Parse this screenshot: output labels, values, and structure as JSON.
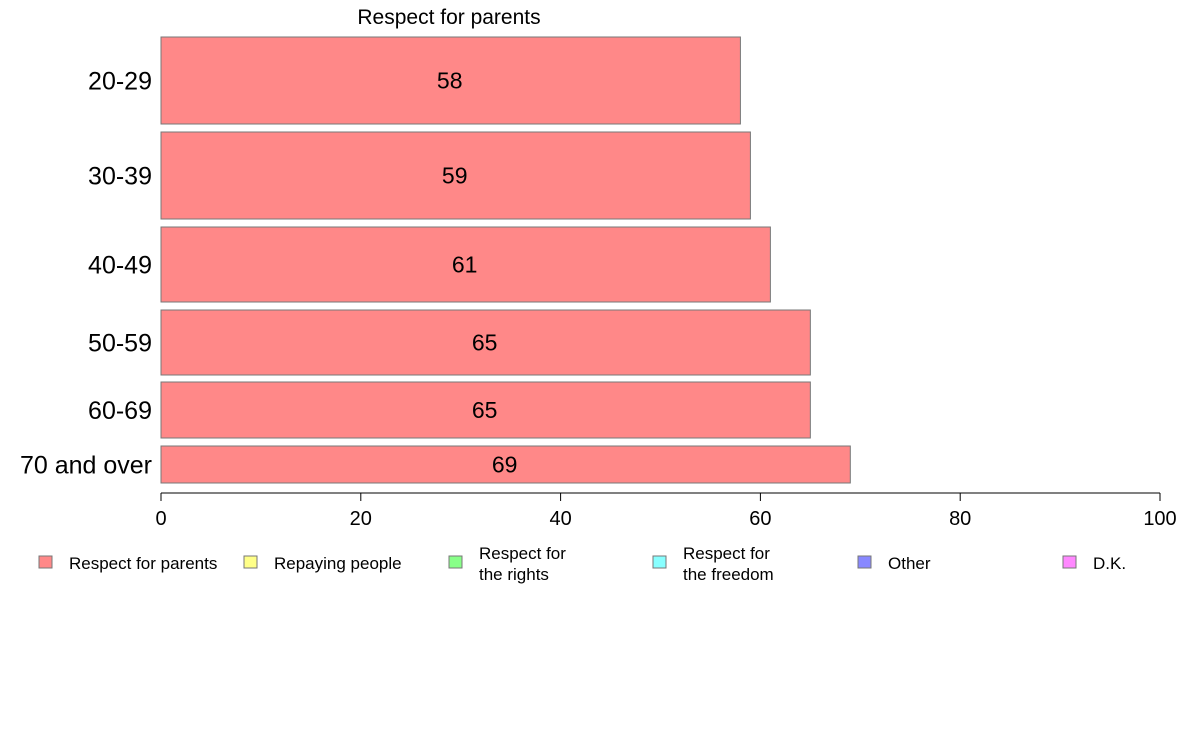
{
  "chart_data": {
    "type": "bar",
    "orientation": "horizontal",
    "title": "Respect for parents",
    "categories": [
      "20-29",
      "30-39",
      "40-49",
      "50-59",
      "60-69",
      "70 and over"
    ],
    "series": [
      {
        "name": "Respect for parents",
        "values": [
          58,
          59,
          61,
          65,
          65,
          69
        ],
        "color": "#ff8888"
      }
    ],
    "data_labels": [
      "58",
      "59",
      "61",
      "65",
      "65",
      "69"
    ],
    "xlim": [
      0,
      100
    ],
    "x_ticks": [
      0,
      20,
      40,
      60,
      80,
      100
    ],
    "x_tick_labels": [
      "0",
      "20",
      "40",
      "60",
      "80",
      "100"
    ],
    "grid": false,
    "legend": {
      "placement": "bottom",
      "entries": [
        {
          "lines": [
            "Respect for parents"
          ],
          "color": "#ff8888"
        },
        {
          "lines": [
            "Repaying people"
          ],
          "color": "#ffff88"
        },
        {
          "lines": [
            "Respect for",
            "the rights"
          ],
          "color": "#88ff88"
        },
        {
          "lines": [
            "Respect for",
            "the freedom"
          ],
          "color": "#88ffff"
        },
        {
          "lines": [
            "Other"
          ],
          "color": "#8888ff"
        },
        {
          "lines": [
            "D.K."
          ],
          "color": "#ff88ff"
        }
      ]
    }
  }
}
